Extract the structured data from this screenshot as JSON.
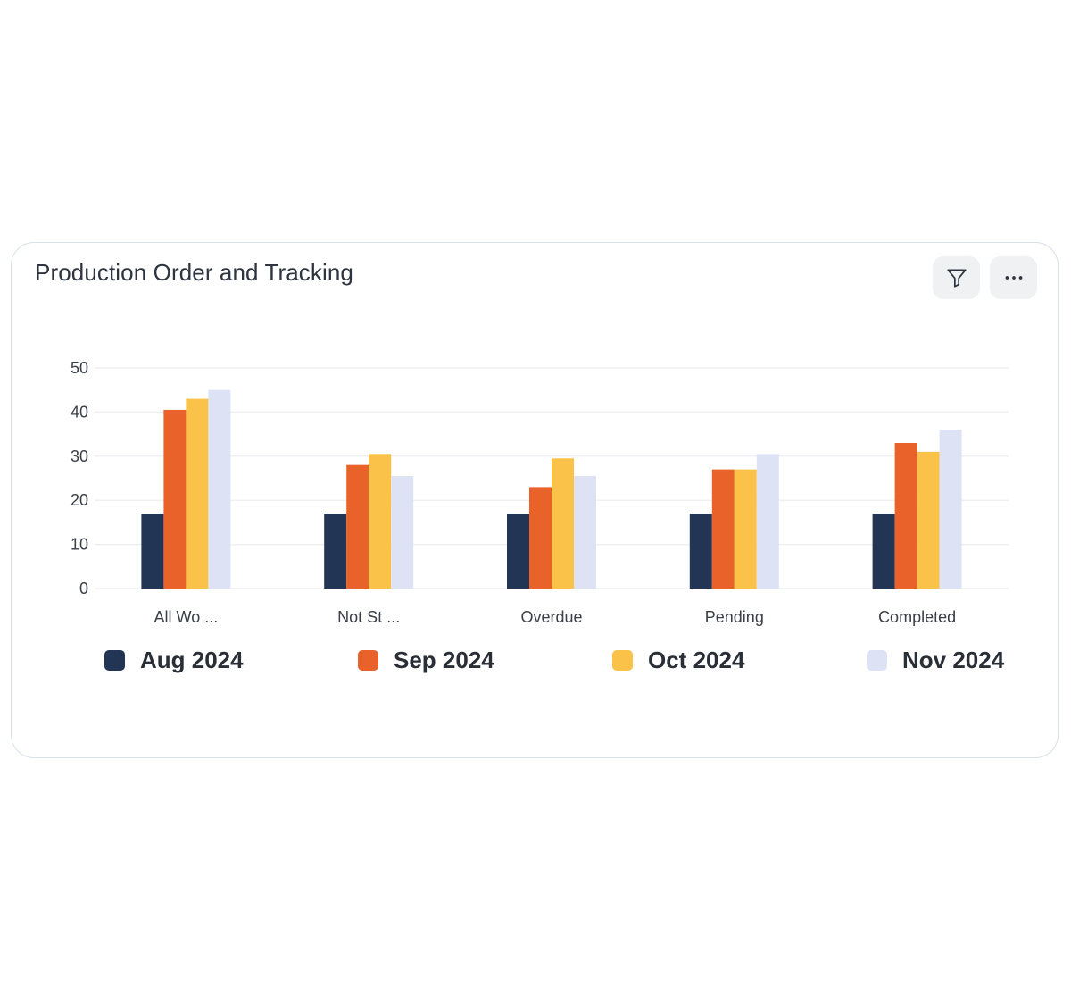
{
  "card": {
    "title": "Production Order and Tracking",
    "filter_icon": "filter-icon",
    "more_icon": "more-horizontal-icon"
  },
  "chart_data": {
    "type": "bar",
    "title": "Production Order and Tracking",
    "xlabel": "",
    "ylabel": "",
    "ylim": [
      0,
      50
    ],
    "yticks": [
      0,
      10,
      20,
      30,
      40,
      50
    ],
    "grid": true,
    "legend_position": "bottom",
    "categories": [
      "All Wo ...",
      "Not St ...",
      "Overdue",
      "Pending",
      "Completed"
    ],
    "series": [
      {
        "name": "Aug 2024",
        "color": "#233554",
        "values": [
          17,
          17,
          17,
          17,
          17
        ]
      },
      {
        "name": "Sep 2024",
        "color": "#e9622a",
        "values": [
          40.5,
          28,
          23,
          27,
          33
        ]
      },
      {
        "name": "Oct 2024",
        "color": "#fbc24a",
        "values": [
          43,
          30.5,
          29.5,
          27,
          31
        ]
      },
      {
        "name": "Nov 2024",
        "color": "#dde3f4",
        "values": [
          45,
          25.5,
          25.5,
          30.5,
          36
        ]
      }
    ]
  },
  "colors": {
    "grid": "#eef0f3",
    "axis_text": "#3a3f47",
    "card_border": "#d9e0e8",
    "button_bg": "#eff1f3"
  }
}
